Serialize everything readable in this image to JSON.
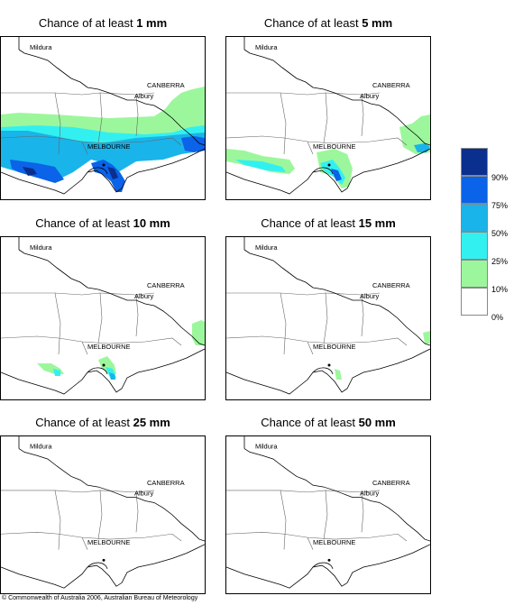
{
  "panels": [
    {
      "prefix": "Chance of at least ",
      "amount": "1 mm"
    },
    {
      "prefix": "Chance of at least ",
      "amount": "5 mm"
    },
    {
      "prefix": "Chance of at least ",
      "amount": "10 mm"
    },
    {
      "prefix": "Chance of at least ",
      "amount": "15 mm"
    },
    {
      "prefix": "Chance of at least ",
      "amount": "25 mm"
    },
    {
      "prefix": "Chance of at least ",
      "amount": "50 mm"
    }
  ],
  "places": {
    "mildura": "Mildura",
    "canberra": "CANBERRA",
    "albury": "Albury",
    "melbourne": "MELBOURNE"
  },
  "legend": {
    "labels": [
      "90%",
      "75%",
      "50%",
      "25%",
      "10%",
      "0%"
    ],
    "colors": [
      "#0a2f8f",
      "#0a63e8",
      "#19b4ea",
      "#33f0f0",
      "#9cf79c",
      "#ffffff"
    ]
  },
  "copyright": "© Commonwealth of Australia 2006, Australian Bureau of Meteorology"
}
